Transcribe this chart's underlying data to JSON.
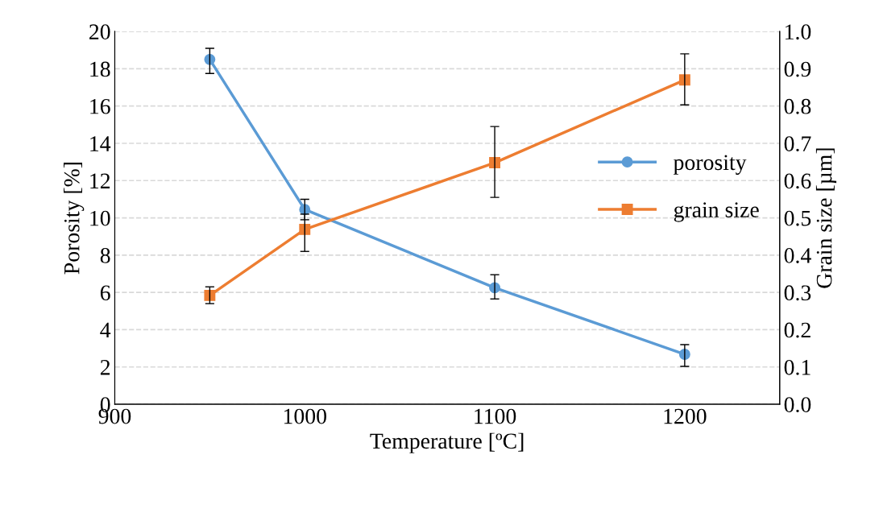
{
  "chart_data": {
    "type": "line",
    "xlabel": "Temperature [ºC]",
    "ylabel": "Porosity [%]",
    "y2label": "Grain size [µm]",
    "xlim": [
      900,
      1250
    ],
    "xticks": [
      900,
      1000,
      1100,
      1200
    ],
    "ylim": [
      0,
      20
    ],
    "yticks": [
      0,
      2,
      4,
      6,
      8,
      10,
      12,
      14,
      16,
      18,
      20
    ],
    "y2lim": [
      0,
      1.0
    ],
    "y2ticks": [
      {
        "value": 0,
        "label": "0.0"
      },
      0.1,
      0.2,
      0.3,
      0.4,
      0.5,
      0.6,
      0.7,
      0.8,
      0.9,
      {
        "value": 1.0,
        "label": "1.0"
      }
    ],
    "grid": "y",
    "legend": "right",
    "line_style": "solid",
    "series": [
      {
        "name": "porosity",
        "color": "#5b9bd5",
        "marker": "circle",
        "x": [
          950,
          1000,
          1100,
          1200
        ],
        "values": [
          18.5,
          10.45,
          6.25,
          2.68
        ],
        "errors": [
          [
            17.75,
            19.1
          ],
          [
            9.9,
            11.0
          ],
          [
            5.65,
            6.95
          ],
          [
            2.03,
            3.2
          ]
        ]
      },
      {
        "name": "grain size",
        "color": "#ed7d31",
        "marker": "square",
        "axis": "y2",
        "x": [
          950,
          1000,
          1100,
          1200
        ],
        "values": [
          0.292,
          0.469,
          0.648,
          0.87
        ],
        "errors": [
          [
            0.27,
            0.315
          ],
          [
            0.41,
            0.51
          ],
          [
            0.555,
            0.745
          ],
          [
            0.803,
            0.94
          ]
        ]
      }
    ]
  }
}
